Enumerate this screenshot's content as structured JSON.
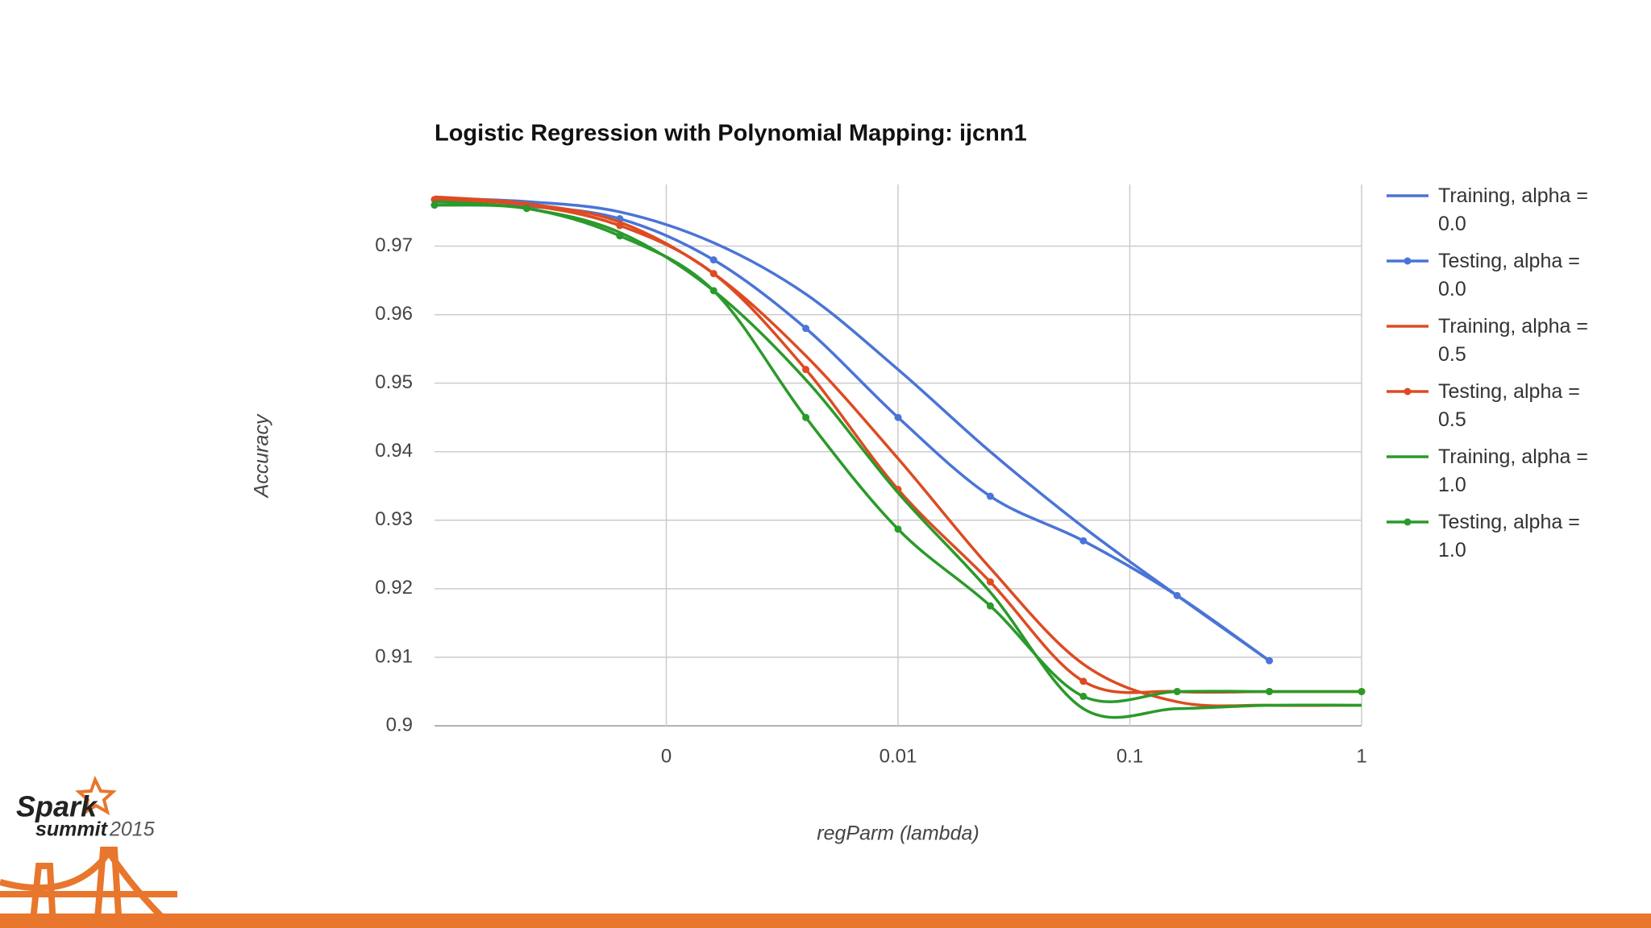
{
  "chart_data": {
    "type": "line",
    "title": "Logistic Regression with Polynomial Mapping: ijcnn1",
    "x_label": "regParm (lambda)",
    "y_label": "Accuracy",
    "x": [
      0.0001,
      0.00025,
      0.00063,
      0.0016,
      0.004,
      0.01,
      0.025,
      0.063,
      0.16,
      0.4,
      1
    ],
    "xlim": [
      0.0001,
      1
    ],
    "xscale": "log",
    "xticks": [
      {
        "value": 0.001,
        "label": "0"
      },
      0.01,
      0.1,
      1
    ],
    "ylim": [
      0.9,
      0.979
    ],
    "yticks": [
      0.9,
      0.91,
      0.92,
      0.93,
      0.94,
      0.95,
      0.96,
      0.97
    ],
    "grid": true,
    "curve": "smooth",
    "legend": "right",
    "series": [
      {
        "name": "Training, alpha = 0.0",
        "color": "#4a74d6",
        "markers": false,
        "values": [
          0.977,
          0.9765,
          0.975,
          0.9705,
          0.963,
          0.952,
          0.94,
          0.929,
          0.919,
          0.9095,
          null
        ]
      },
      {
        "name": "Testing, alpha = 0.0",
        "color": "#4a74d6",
        "markers": true,
        "values": [
          0.976,
          0.9758,
          0.974,
          0.968,
          0.958,
          0.945,
          0.9335,
          0.927,
          0.919,
          0.9095,
          null
        ]
      },
      {
        "name": "Training, alpha = 0.5",
        "color": "#dd4b22",
        "markers": false,
        "values": [
          0.9772,
          0.9762,
          0.9735,
          0.966,
          0.954,
          0.939,
          0.923,
          0.909,
          0.9035,
          0.903,
          0.903
        ]
      },
      {
        "name": "Testing, alpha = 0.5",
        "color": "#dd4b22",
        "markers": true,
        "values": [
          0.9768,
          0.976,
          0.973,
          0.966,
          0.952,
          0.9345,
          0.921,
          0.9065,
          0.905,
          0.905,
          0.905
        ]
      },
      {
        "name": "Training, alpha = 1.0",
        "color": "#2a9a2a",
        "markers": false,
        "values": [
          0.9765,
          0.9755,
          0.972,
          0.9635,
          0.9505,
          0.934,
          0.9195,
          0.9025,
          0.9025,
          0.903,
          0.903
        ]
      },
      {
        "name": "Testing, alpha = 1.0",
        "color": "#2a9a2a",
        "markers": true,
        "values": [
          0.976,
          0.9755,
          0.9715,
          0.9635,
          0.945,
          0.9287,
          0.9175,
          0.9043,
          0.905,
          0.905,
          0.905
        ]
      }
    ]
  },
  "logo": {
    "name": "Spark",
    "event": "summit",
    "year": "2015"
  }
}
